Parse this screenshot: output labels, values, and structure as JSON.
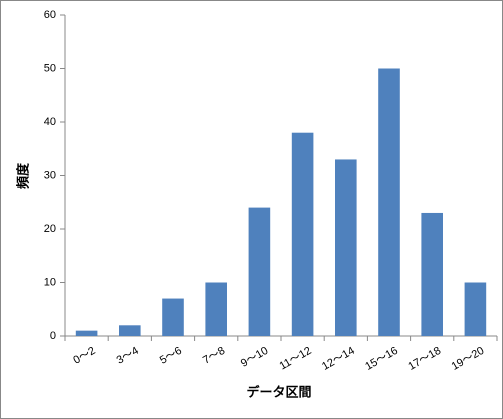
{
  "chart_data": {
    "type": "bar",
    "x_label": "データ区間",
    "y_label": "頻度",
    "categories": [
      "0～2",
      "3～4",
      "5～6",
      "7～8",
      "9～10",
      "11～12",
      "12～14",
      "15～16",
      "17～18",
      "19～20"
    ],
    "values": [
      1,
      2,
      7,
      10,
      24,
      38,
      33,
      50,
      23,
      10
    ],
    "color": "#4f81bd",
    "ylim": [
      0,
      60
    ],
    "yticks": [
      0,
      10,
      20,
      30,
      40,
      50,
      60
    ],
    "grid": false
  }
}
